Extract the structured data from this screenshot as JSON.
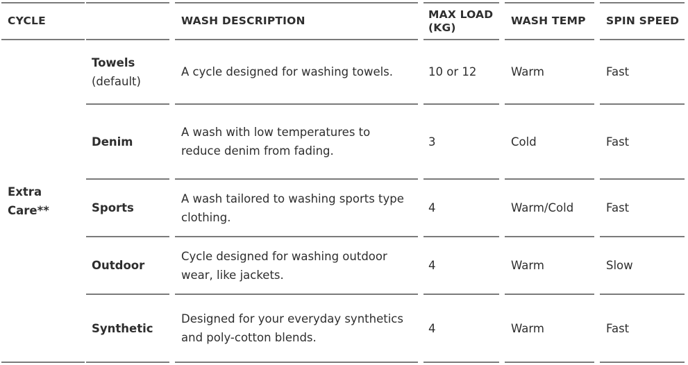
{
  "headers": [
    "CYCLE",
    "",
    "WASH DESCRIPTION",
    "MAX LOAD (KG)",
    "WASH TEMP",
    "SPIN SPEED"
  ],
  "group": {
    "label": "Extra Care**"
  },
  "rows": [
    {
      "cycle": "Towels",
      "note": "(default)",
      "description": "A cycle designed for washing towels.",
      "max_load": "10 or 12",
      "wash_temp": "Warm",
      "spin_speed": "Fast"
    },
    {
      "cycle": "Denim",
      "note": "",
      "description": "A wash with low temperatures to reduce denim from fading.",
      "max_load": "3",
      "wash_temp": "Cold",
      "spin_speed": "Fast"
    },
    {
      "cycle": "Sports",
      "note": "",
      "description": "A wash tailored to washing sports type clothing.",
      "max_load": "4",
      "wash_temp": "Warm/Cold",
      "spin_speed": "Fast"
    },
    {
      "cycle": "Outdoor",
      "note": "",
      "description": "Cycle designed for washing outdoor wear, like jackets.",
      "max_load": "4",
      "wash_temp": "Warm",
      "spin_speed": "Slow"
    },
    {
      "cycle": "Synthetic",
      "note": "",
      "description": "Designed for your everyday synthetics and poly-cotton blends.",
      "max_load": "4",
      "wash_temp": "Warm",
      "spin_speed": "Fast"
    }
  ]
}
